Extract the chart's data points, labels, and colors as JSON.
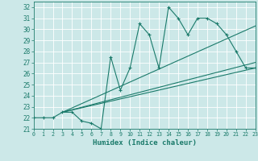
{
  "xlabel": "Humidex (Indice chaleur)",
  "xlim": [
    0,
    23
  ],
  "ylim": [
    21,
    32.5
  ],
  "yticks": [
    21,
    22,
    23,
    24,
    25,
    26,
    27,
    28,
    29,
    30,
    31,
    32
  ],
  "xticks": [
    0,
    1,
    2,
    3,
    4,
    5,
    6,
    7,
    8,
    9,
    10,
    11,
    12,
    13,
    14,
    15,
    16,
    17,
    18,
    19,
    20,
    21,
    22,
    23
  ],
  "bg_color": "#cce8e8",
  "line_color": "#1a7a6a",
  "grid_color": "#b8d8d8",
  "line1_x": [
    0,
    1,
    2,
    3,
    4,
    5,
    6,
    7,
    8,
    9,
    10,
    11,
    12,
    13,
    14,
    15,
    16,
    17,
    18,
    19,
    20,
    21,
    22,
    23
  ],
  "line1_y": [
    22,
    22,
    22,
    22.5,
    22.5,
    21.7,
    21.5,
    21,
    27.5,
    24.5,
    26.5,
    30.5,
    29.5,
    26.5,
    32,
    31,
    29.5,
    31,
    31,
    30.5,
    29.5,
    28,
    26.5,
    26.5
  ],
  "line2_x": [
    3,
    23
  ],
  "line2_y": [
    22.5,
    27.0
  ],
  "line3_x": [
    3,
    23
  ],
  "line3_y": [
    22.5,
    30.3
  ],
  "line4_x": [
    3,
    23
  ],
  "line4_y": [
    22.5,
    26.5
  ]
}
